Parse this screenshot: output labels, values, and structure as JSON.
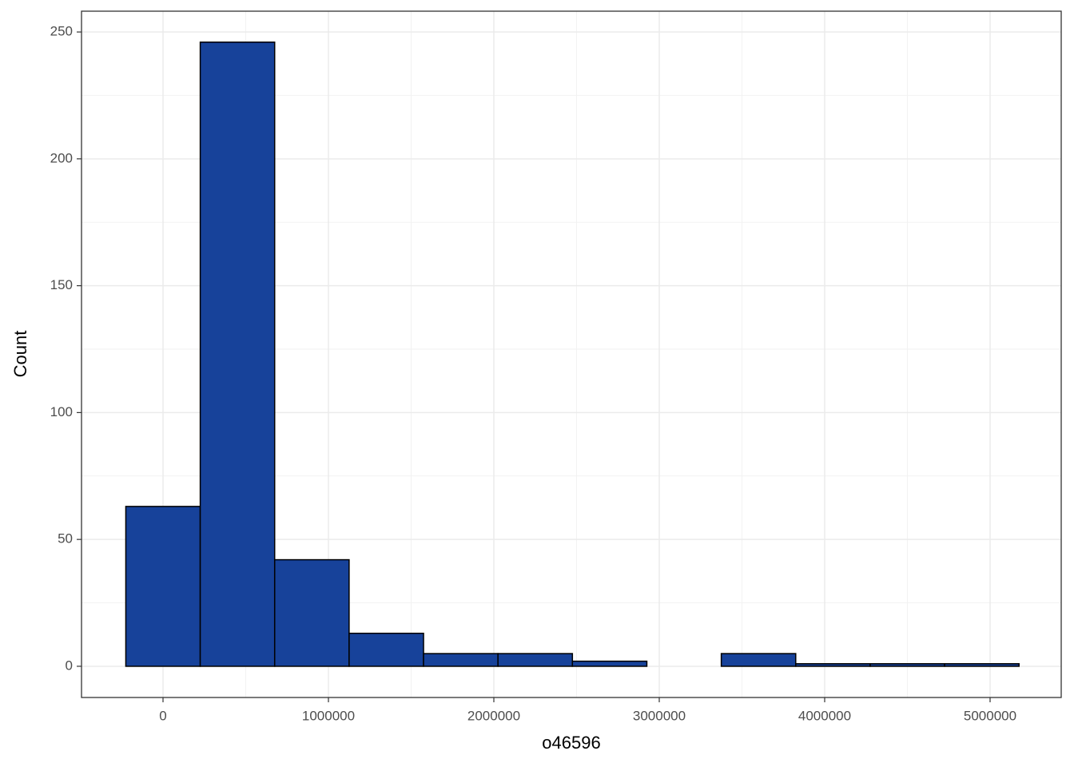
{
  "chart_data": {
    "type": "histogram",
    "x_label": "o46596",
    "y_label": "Count",
    "bins": [
      -225000,
      225000,
      675000,
      1125000,
      1575000,
      2025000,
      2475000,
      2925000,
      3375000,
      3825000,
      4275000,
      4725000,
      5175000
    ],
    "counts": [
      63,
      246,
      42,
      13,
      5,
      5,
      2,
      0,
      5,
      1,
      1,
      1
    ],
    "color": "#17429a",
    "edgecolor": "#000000",
    "xlim": [
      -492754,
      5430000
    ],
    "xticks": [
      0,
      1000000,
      2000000,
      3000000,
      4000000,
      5000000
    ],
    "ylim": [
      -12.3,
      258.2
    ],
    "yticks": [
      0,
      50,
      100,
      150,
      200,
      250
    ],
    "grid": true
  }
}
